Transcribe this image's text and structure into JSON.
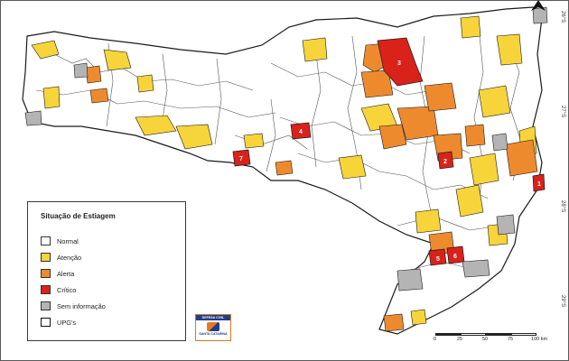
{
  "map": {
    "legend": {
      "title": "Situação de Estiagem",
      "items": [
        {
          "label": "Normal",
          "color": "#ffffff",
          "kind": "fill"
        },
        {
          "label": "Atenção",
          "color": "#f7d43a",
          "kind": "fill"
        },
        {
          "label": "Alerta",
          "color": "#ee8a2e",
          "kind": "fill"
        },
        {
          "label": "Crítico",
          "color": "#d9221a",
          "kind": "fill"
        },
        {
          "label": "Sem informação",
          "color": "#b4b4b4",
          "kind": "fill"
        },
        {
          "label": "UPG's",
          "color": "#ffffff",
          "kind": "outline"
        }
      ]
    },
    "region_markers": [
      "1",
      "2",
      "3",
      "4",
      "5",
      "6",
      "7"
    ],
    "scale_bar": {
      "labels": [
        "0",
        "25",
        "50",
        "75",
        "100 km"
      ]
    },
    "coordinate_labels": [
      "26°S",
      "27°S",
      "28°S",
      "29°S"
    ],
    "logo": {
      "line1": "DEFESA CIVIL",
      "line2": "SANTA CATARINA"
    },
    "colors": {
      "normal": "#ffffff",
      "atencao": "#f7d43a",
      "alerta": "#ee8a2e",
      "critico": "#d9221a",
      "sem_informacao": "#b4b4b4",
      "boundary": "#1a1a1a"
    }
  }
}
